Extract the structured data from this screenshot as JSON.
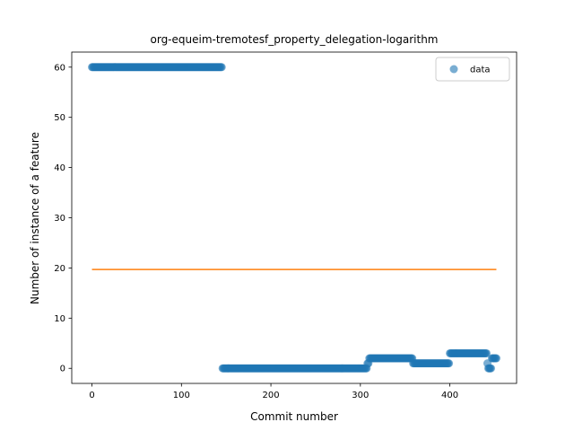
{
  "chart_data": {
    "type": "scatter",
    "title": "org-equeim-tremotesf_property_delegation-logarithm",
    "xlabel": "Commit number",
    "ylabel": "Number of instance of a feature",
    "xlim": [
      -22.6,
      474.6
    ],
    "ylim": [
      -3,
      63
    ],
    "xticks": [
      0,
      100,
      200,
      300,
      400
    ],
    "yticks": [
      0,
      10,
      20,
      30,
      40,
      50,
      60
    ],
    "grid": false,
    "legend": {
      "position": "top-right",
      "entries": [
        "data"
      ]
    },
    "series": [
      {
        "name": "data",
        "kind": "points",
        "color": "#1f77b4",
        "segments": [
          {
            "x_from": 0,
            "x_to": 145,
            "y": 60
          },
          {
            "x_from": 146,
            "x_to": 307,
            "y": 0
          },
          {
            "x_from": 308,
            "x_to": 309,
            "y": 1
          },
          {
            "x_from": 310,
            "x_to": 358,
            "y": 2
          },
          {
            "x_from": 359,
            "x_to": 399,
            "y": 1
          },
          {
            "x_from": 400,
            "x_to": 441,
            "y": 3
          },
          {
            "x_from": 442,
            "x_to": 442,
            "y": 1
          },
          {
            "x_from": 443,
            "x_to": 446,
            "y": 0
          },
          {
            "x_from": 447,
            "x_to": 452,
            "y": 2
          }
        ]
      },
      {
        "kind": "line",
        "color": "#ff7f0e",
        "x": [
          0,
          452
        ],
        "y": [
          19.7,
          19.7
        ]
      }
    ]
  }
}
